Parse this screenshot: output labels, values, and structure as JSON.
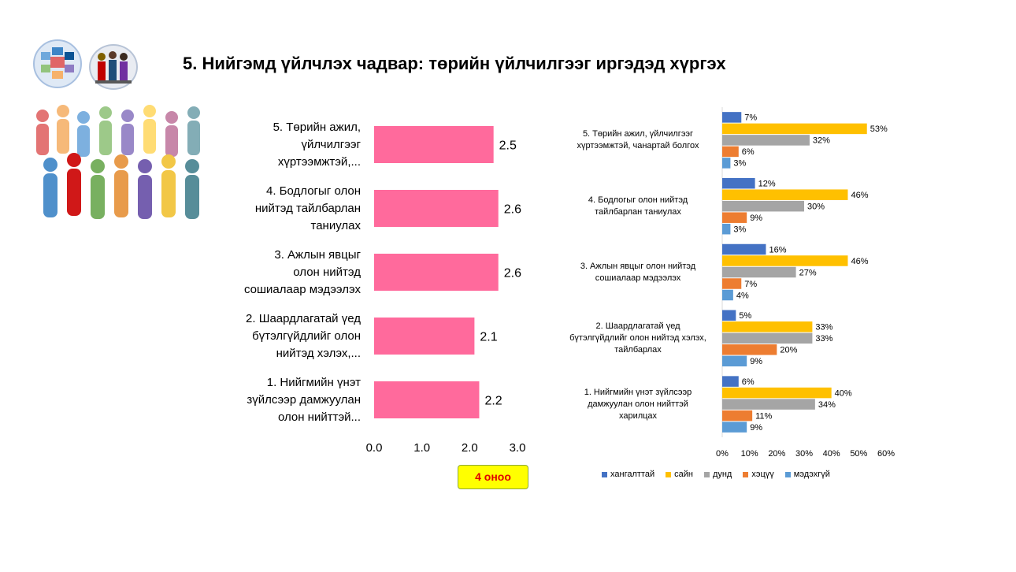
{
  "title": "5. Нийгэмд үйлчлэх чадвар: төрийн үйлчилгээг иргэдэд хүргэх",
  "score_label": "4 оноо",
  "colors": {
    "pink_bar": "#ff6a9c",
    "series": [
      "#4472c4",
      "#ffc000",
      "#a5a5a5",
      "#ed7d31",
      "#5b9bd5"
    ]
  },
  "chart_data": [
    {
      "type": "bar",
      "orientation": "horizontal",
      "categories": [
        "5. Төрийн ажил, үйлчилгээг хүртээмжтэй,...",
        "4. Бодлогыг олон нийтэд тайлбарлан таниулах",
        "3. Ажлын явцыг олон нийтэд сошиалаар мэдээлэх",
        "2. Шаардлагатай үед бүтэлгүйдлийг олон нийтэд хэлэх,...",
        "1. Нийгмийн үнэт зүйлсээр дамжуулан олон нийттэй..."
      ],
      "category_lines": [
        [
          "5. Төрийн ажил,",
          "үйлчилгээг",
          "хүртээмжтэй,..."
        ],
        [
          "4. Бодлогыг олон",
          "нийтэд тайлбарлан",
          "таниулах"
        ],
        [
          "3. Ажлын явцыг",
          "олон нийтэд",
          "сошиалаар мэдээлэх"
        ],
        [
          "2. Шаардлагатай үед",
          "бүтэлгүйдлийг олон",
          "нийтэд хэлэх,..."
        ],
        [
          "1. Нийгмийн үнэт",
          "зүйлсээр дамжуулан",
          "олон нийттэй..."
        ]
      ],
      "values": [
        2.5,
        2.6,
        2.6,
        2.1,
        2.2
      ],
      "value_labels": [
        "2.5",
        "2.6",
        "2.6",
        "2.1",
        "2.2"
      ],
      "xlim": [
        0,
        3
      ],
      "xticks": [
        "0.0",
        "1.0",
        "2.0",
        "3.0"
      ],
      "grid": false
    },
    {
      "type": "bar",
      "orientation": "horizontal",
      "categories": [
        "5. Төрийн ажил, үйлчилгээг хүртээмжтэй, чанартай болгох",
        "4. Бодлогыг олон нийтэд тайлбарлан таниулах",
        "3. Ажлын явцыг олон нийтэд сошиалаар мэдээлэх",
        "2. Шаардлагатай үед бүтэлгүйдлийг олон нийтэд хэлэх, тайлбарлах",
        "1. Нийгмийн үнэт зүйлсээр дамжуулан олон нийттэй харилцах"
      ],
      "category_lines": [
        [
          "5. Төрийн ажил, үйлчилгээг",
          "хүртээмжтэй, чанартай болгох"
        ],
        [
          "4. Бодлогыг олон нийтэд",
          "тайлбарлан таниулах"
        ],
        [
          "3. Ажлын  явцыг олон нийтэд",
          "сошиалаар мэдээлэх"
        ],
        [
          "2. Шаардлагатай үед",
          "бүтэлгүйдлийг олон нийтэд хэлэх,",
          "тайлбарлах"
        ],
        [
          "1. Нийгмийн үнэт зүйлсээр",
          "дамжуулан олон нийттэй",
          "харилцах"
        ]
      ],
      "series": [
        {
          "name": "хангалттай",
          "values": [
            7,
            12,
            16,
            5,
            6
          ]
        },
        {
          "name": "сайн",
          "values": [
            53,
            46,
            46,
            33,
            40
          ]
        },
        {
          "name": "дунд",
          "values": [
            32,
            30,
            27,
            33,
            34
          ]
        },
        {
          "name": "хэцүү",
          "values": [
            6,
            9,
            7,
            20,
            11
          ]
        },
        {
          "name": "мэдэхгүй",
          "values": [
            3,
            3,
            4,
            9,
            9
          ]
        }
      ],
      "xlim": [
        0,
        60
      ],
      "xticks": [
        "0%",
        "10%",
        "20%",
        "30%",
        "40%",
        "50%",
        "60%"
      ],
      "value_suffix": "%",
      "legend": "bottom",
      "grid": false
    }
  ]
}
